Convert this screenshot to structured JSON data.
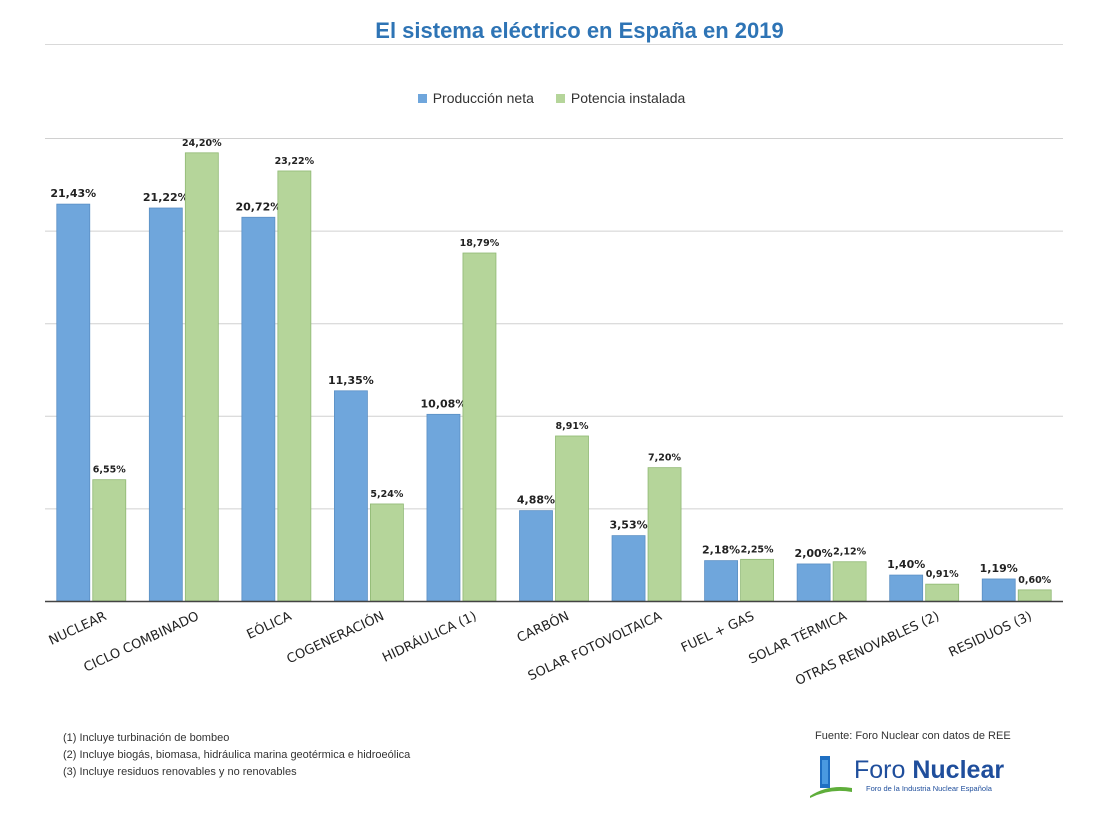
{
  "colors": {
    "produccion": "#6fa6dc",
    "potencia": "#b5d59a",
    "title": "#2e74b5"
  },
  "chart_data": {
    "type": "bar",
    "title": "El sistema eléctrico en España en 2019",
    "categories": [
      "NUCLEAR",
      "CICLO COMBINADO",
      "EÓLICA",
      "COGENERACIÓN",
      "HIDRÁULICA (1)",
      "CARBÓN",
      "SOLAR FOTOVOLTAICA",
      "FUEL + GAS",
      "SOLAR TÉRMICA",
      "OTRAS RENOVABLES (2)",
      "RESIDUOS (3)"
    ],
    "series": [
      {
        "name": "Producción neta",
        "values": [
          21.43,
          21.22,
          20.72,
          11.35,
          10.08,
          4.88,
          3.53,
          2.18,
          2.0,
          1.4,
          1.19
        ],
        "labels": [
          "21,43%",
          "21,22%",
          "20,72%",
          "11,35%",
          "10,08%",
          "4,88%",
          "3,53%",
          "2,18%",
          "2,00%",
          "1,40%",
          "1,19%"
        ]
      },
      {
        "name": "Potencia instalada",
        "values": [
          6.55,
          24.2,
          23.22,
          5.24,
          18.79,
          8.91,
          7.2,
          2.25,
          2.12,
          0.91,
          0.6
        ],
        "labels": [
          "6,55%",
          "24,20%",
          "23,22%",
          "5,24%",
          "18,79%",
          "8,91%",
          "7,20%",
          "2,25%",
          "2,12%",
          "0,91%",
          "0,60%"
        ]
      }
    ],
    "ylim": [
      0,
      25
    ],
    "grid": true,
    "legend": "top-center"
  },
  "notes": [
    "(1) Incluye turbinación de bombeo",
    "(2) Incluye biogás, biomasa, hidráulica marina geotérmica e hidroeólica",
    "(3) Incluye residuos renovables y no renovables"
  ],
  "source": "Fuente: Foro Nuclear con datos de REE",
  "logo": {
    "word_light": "Foro ",
    "word_bold": "Nuclear",
    "subtitle": "Foro de la Industria Nuclear Española"
  }
}
